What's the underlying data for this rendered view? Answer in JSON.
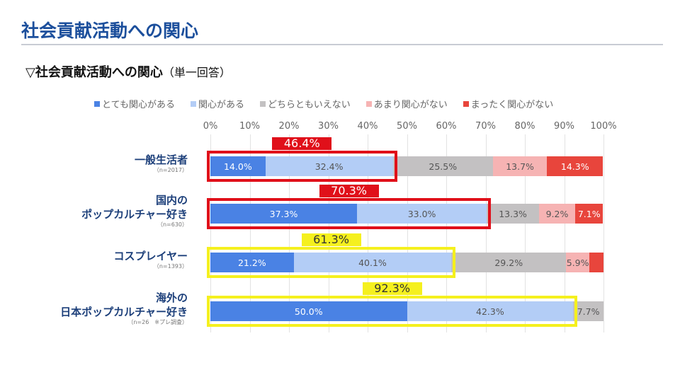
{
  "page": {
    "title": "社会貢献活動への関心",
    "subtitle": "▽社会貢献活動への関心",
    "subtitle_note": "（単一回答）"
  },
  "chart_data": {
    "type": "bar",
    "orientation": "horizontal",
    "stacked": true,
    "legend_position": "top",
    "xlim": [
      0,
      100
    ],
    "x_ticks": [
      "0%",
      "10%",
      "20%",
      "30%",
      "40%",
      "50%",
      "60%",
      "70%",
      "80%",
      "90%",
      "100%"
    ],
    "grid": true,
    "series": [
      {
        "name": "とても関心がある",
        "color": "#4a82e4",
        "values": [
          14.0,
          37.3,
          21.2,
          50.0
        ]
      },
      {
        "name": "関心がある",
        "color": "#b3cdf6",
        "values": [
          32.4,
          33.0,
          40.1,
          42.3
        ]
      },
      {
        "name": "どちらともいえない",
        "color": "#c3c1c2",
        "values": [
          25.5,
          13.3,
          29.2,
          7.7
        ]
      },
      {
        "name": "あまり関心がない",
        "color": "#f6b3b3",
        "values": [
          13.7,
          9.2,
          5.9,
          0
        ]
      },
      {
        "name": "まったく関心がない",
        "color": "#e8453c",
        "values": [
          14.3,
          7.1,
          3.6,
          0
        ]
      }
    ],
    "labels": [
      [
        "14.0%",
        "32.4%",
        "25.5%",
        "13.7%",
        "14.3%"
      ],
      [
        "37.3%",
        "33.0%",
        "13.3%",
        "9.2%",
        "7.1%"
      ],
      [
        "21.2%",
        "40.1%",
        "29.2%",
        "5.9%",
        ""
      ],
      [
        "50.0%",
        "42.3%",
        "7.7%",
        "",
        ""
      ]
    ],
    "categories": [
      {
        "lines": [
          "一般生活者"
        ],
        "n": "（n=2017）"
      },
      {
        "lines": [
          "国内の",
          "ポップカルチャー好き"
        ],
        "n": "（n=630）"
      },
      {
        "lines": [
          "コスプレイヤー"
        ],
        "n": "（n=1393）"
      },
      {
        "lines": [
          "海外の",
          "日本ポップカルチャー好き"
        ],
        "n": "（n=26　※プレ調査）"
      }
    ],
    "highlights": [
      {
        "value": "46.4%",
        "color": "#e0101a",
        "text_color": "#ffffff"
      },
      {
        "value": "70.3%",
        "color": "#e0101a",
        "text_color": "#ffffff"
      },
      {
        "value": "61.3%",
        "color": "#f5f01e",
        "text_color": "#333333"
      },
      {
        "value": "92.3%",
        "color": "#f5f01e",
        "text_color": "#333333"
      }
    ]
  }
}
